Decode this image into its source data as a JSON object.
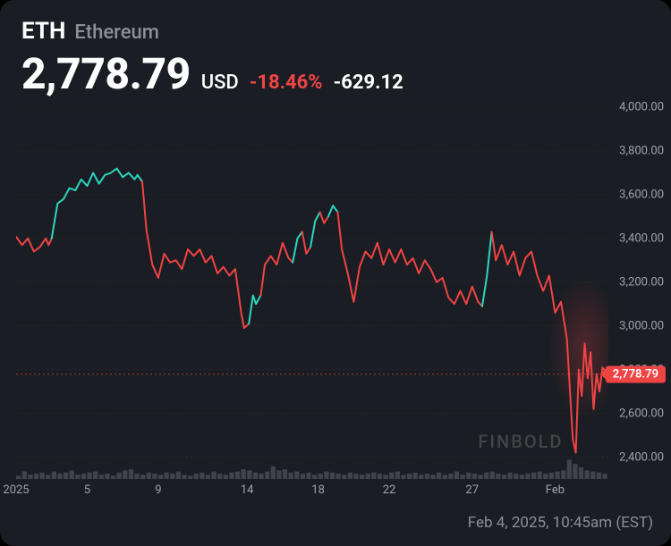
{
  "colors": {
    "background": "#1a1d23",
    "text": "#ffffff",
    "muted": "#8a8f98",
    "axis": "#9ca3af",
    "up": "#2dd4bf",
    "down": "#ef4444",
    "volume": "#4a4e56",
    "grid": "#333333"
  },
  "header": {
    "ticker": "ETH",
    "name": "Ethereum",
    "price": "2,778.79",
    "currency": "USD",
    "pct_change": "-18.46%",
    "abs_change": "-629.12"
  },
  "chart": {
    "type": "line",
    "ylim": [
      2300,
      4000
    ],
    "yticks": [
      "4,000.00",
      "3,800.00",
      "3,600.00",
      "3,400.00",
      "3,200.00",
      "3,000.00",
      "2,800.00",
      "2,600.00",
      "2,400.00"
    ],
    "ytick_values": [
      4000,
      3800,
      3600,
      3400,
      3200,
      3000,
      2800,
      2600,
      2400
    ],
    "xticks": [
      {
        "pos": 0.0,
        "label": "2025"
      },
      {
        "pos": 0.12,
        "label": "5"
      },
      {
        "pos": 0.24,
        "label": "9"
      },
      {
        "pos": 0.39,
        "label": "14"
      },
      {
        "pos": 0.51,
        "label": "18"
      },
      {
        "pos": 0.63,
        "label": "22"
      },
      {
        "pos": 0.77,
        "label": "27"
      },
      {
        "pos": 0.91,
        "label": "Feb"
      }
    ],
    "current_price": 2778.79,
    "current_label": "2,778.79",
    "segments": [
      {
        "color": "down",
        "points": [
          [
            0.0,
            3408
          ],
          [
            0.01,
            3370
          ],
          [
            0.02,
            3400
          ],
          [
            0.03,
            3340
          ],
          [
            0.04,
            3360
          ],
          [
            0.05,
            3400
          ],
          [
            0.055,
            3370
          ],
          [
            0.06,
            3400
          ]
        ]
      },
      {
        "color": "up",
        "points": [
          [
            0.06,
            3400
          ],
          [
            0.07,
            3560
          ],
          [
            0.08,
            3580
          ],
          [
            0.09,
            3630
          ],
          [
            0.1,
            3620
          ],
          [
            0.11,
            3670
          ],
          [
            0.12,
            3640
          ],
          [
            0.13,
            3700
          ],
          [
            0.14,
            3650
          ],
          [
            0.15,
            3690
          ],
          [
            0.16,
            3700
          ],
          [
            0.17,
            3720
          ],
          [
            0.18,
            3680
          ],
          [
            0.19,
            3700
          ],
          [
            0.2,
            3670
          ],
          [
            0.205,
            3690
          ],
          [
            0.213,
            3660
          ]
        ]
      },
      {
        "color": "down",
        "points": [
          [
            0.213,
            3660
          ],
          [
            0.22,
            3440
          ],
          [
            0.23,
            3280
          ],
          [
            0.24,
            3220
          ],
          [
            0.25,
            3330
          ],
          [
            0.26,
            3290
          ],
          [
            0.27,
            3300
          ],
          [
            0.28,
            3260
          ],
          [
            0.29,
            3350
          ],
          [
            0.3,
            3320
          ],
          [
            0.31,
            3350
          ],
          [
            0.32,
            3290
          ],
          [
            0.33,
            3320
          ],
          [
            0.34,
            3240
          ],
          [
            0.35,
            3270
          ],
          [
            0.36,
            3230
          ],
          [
            0.37,
            3260
          ],
          [
            0.38,
            3060
          ],
          [
            0.385,
            2990
          ],
          [
            0.393,
            3010
          ]
        ]
      },
      {
        "color": "up",
        "points": [
          [
            0.393,
            3010
          ],
          [
            0.4,
            3140
          ],
          [
            0.405,
            3100
          ],
          [
            0.413,
            3140
          ]
        ]
      },
      {
        "color": "down",
        "points": [
          [
            0.413,
            3140
          ],
          [
            0.42,
            3280
          ],
          [
            0.43,
            3320
          ],
          [
            0.44,
            3280
          ],
          [
            0.45,
            3380
          ],
          [
            0.46,
            3310
          ],
          [
            0.467,
            3290
          ]
        ]
      },
      {
        "color": "up",
        "points": [
          [
            0.467,
            3290
          ],
          [
            0.475,
            3400
          ],
          [
            0.483,
            3430
          ]
        ]
      },
      {
        "color": "down",
        "points": [
          [
            0.483,
            3430
          ],
          [
            0.49,
            3330
          ],
          [
            0.497,
            3360
          ]
        ]
      },
      {
        "color": "up",
        "points": [
          [
            0.497,
            3360
          ],
          [
            0.505,
            3480
          ],
          [
            0.513,
            3520
          ]
        ]
      },
      {
        "color": "down",
        "points": [
          [
            0.513,
            3520
          ],
          [
            0.52,
            3470
          ],
          [
            0.527,
            3500
          ]
        ]
      },
      {
        "color": "up",
        "points": [
          [
            0.527,
            3500
          ],
          [
            0.535,
            3550
          ],
          [
            0.543,
            3520
          ]
        ]
      },
      {
        "color": "down",
        "points": [
          [
            0.543,
            3520
          ],
          [
            0.55,
            3350
          ],
          [
            0.56,
            3240
          ],
          [
            0.57,
            3110
          ],
          [
            0.58,
            3270
          ],
          [
            0.59,
            3340
          ],
          [
            0.6,
            3310
          ],
          [
            0.61,
            3380
          ],
          [
            0.62,
            3280
          ],
          [
            0.63,
            3350
          ],
          [
            0.64,
            3290
          ],
          [
            0.65,
            3350
          ],
          [
            0.66,
            3280
          ],
          [
            0.67,
            3310
          ],
          [
            0.68,
            3240
          ],
          [
            0.69,
            3300
          ],
          [
            0.7,
            3260
          ],
          [
            0.71,
            3200
          ],
          [
            0.72,
            3220
          ],
          [
            0.73,
            3130
          ],
          [
            0.74,
            3100
          ],
          [
            0.75,
            3160
          ],
          [
            0.76,
            3100
          ],
          [
            0.77,
            3180
          ],
          [
            0.78,
            3110
          ],
          [
            0.787,
            3090
          ]
        ]
      },
      {
        "color": "up",
        "points": [
          [
            0.787,
            3090
          ],
          [
            0.795,
            3230
          ],
          [
            0.803,
            3430
          ]
        ]
      },
      {
        "color": "down",
        "points": [
          [
            0.803,
            3430
          ],
          [
            0.81,
            3300
          ],
          [
            0.82,
            3370
          ],
          [
            0.83,
            3280
          ],
          [
            0.84,
            3340
          ],
          [
            0.85,
            3230
          ],
          [
            0.86,
            3310
          ],
          [
            0.87,
            3340
          ],
          [
            0.88,
            3230
          ],
          [
            0.89,
            3160
          ],
          [
            0.9,
            3230
          ],
          [
            0.91,
            3060
          ],
          [
            0.92,
            3110
          ],
          [
            0.93,
            2940
          ],
          [
            0.94,
            2480
          ],
          [
            0.945,
            2420
          ],
          [
            0.95,
            2800
          ],
          [
            0.955,
            2680
          ],
          [
            0.96,
            2920
          ],
          [
            0.965,
            2760
          ],
          [
            0.97,
            2880
          ],
          [
            0.975,
            2620
          ],
          [
            0.98,
            2780
          ],
          [
            0.985,
            2700
          ],
          [
            0.99,
            2810
          ],
          [
            1.0,
            2779
          ]
        ]
      }
    ],
    "volume": [
      0.03,
      0.07,
      0.04,
      0.05,
      0.06,
      0.04,
      0.07,
      0.05,
      0.06,
      0.08,
      0.04,
      0.05,
      0.06,
      0.07,
      0.04,
      0.05,
      0.03,
      0.06,
      0.08,
      0.09,
      0.05,
      0.04,
      0.06,
      0.05,
      0.04,
      0.06,
      0.05,
      0.07,
      0.04,
      0.03,
      0.05,
      0.06,
      0.04,
      0.07,
      0.05,
      0.04,
      0.06,
      0.07,
      0.09,
      0.08,
      0.06,
      0.05,
      0.07,
      0.12,
      0.08,
      0.09,
      0.06,
      0.07,
      0.05,
      0.06,
      0.04,
      0.05,
      0.07,
      0.06,
      0.05,
      0.04,
      0.06,
      0.05,
      0.04,
      0.05,
      0.06,
      0.05,
      0.04,
      0.06,
      0.07,
      0.04,
      0.05,
      0.06,
      0.04,
      0.05,
      0.04,
      0.06,
      0.04,
      0.05,
      0.07,
      0.04,
      0.06,
      0.05,
      0.04,
      0.06,
      0.07,
      0.05,
      0.04,
      0.06,
      0.05,
      0.04,
      0.05,
      0.06,
      0.07,
      0.05,
      0.06,
      0.07,
      0.08,
      0.18,
      0.14,
      0.11,
      0.08,
      0.07,
      0.06,
      0.05
    ]
  },
  "watermark": "FINBOLD",
  "timestamp": "Feb 4, 2025, 10:45am (EST)"
}
